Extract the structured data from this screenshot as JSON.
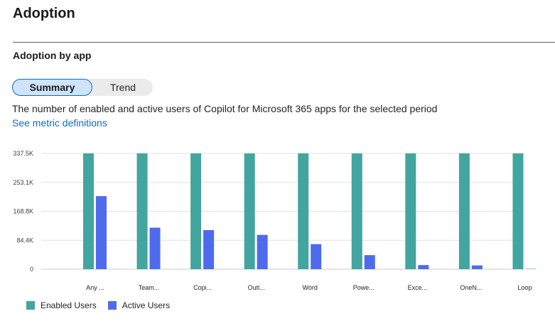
{
  "page": {
    "title": "Adoption"
  },
  "section": {
    "title": "Adoption by app",
    "toggle": {
      "summary_label": "Summary",
      "trend_label": "Trend",
      "selected": "Summary"
    },
    "description": "The number of enabled and active users of Copilot for Microsoft 365 apps for the selected period",
    "link_label": "See metric definitions"
  },
  "colors": {
    "enabled": "#42a5a0",
    "active": "#4f6bed",
    "grid": "#e1e1e1",
    "axis": "#c8c8c8"
  },
  "legend": {
    "enabled_label": "Enabled Users",
    "active_label": "Active Users"
  },
  "chart_data": {
    "type": "bar",
    "categories": [
      "Any ...",
      "Team...",
      "Copi...",
      "Outl...",
      "Word",
      "Powe...",
      "Exce...",
      "OneN...",
      "Loop"
    ],
    "series": [
      {
        "name": "Enabled Users",
        "values": [
          337500,
          337500,
          337500,
          337500,
          337500,
          337500,
          337500,
          337500,
          337500
        ]
      },
      {
        "name": "Active Users",
        "values": [
          213000,
          121000,
          114000,
          100000,
          73000,
          41000,
          12000,
          11000,
          1000
        ]
      }
    ],
    "yticks": [
      "337.5K",
      "253.1K",
      "168.8K",
      "84.4K",
      "0"
    ],
    "ylim": [
      0,
      337500
    ],
    "grid": true,
    "legend_position": "bottom-left"
  }
}
